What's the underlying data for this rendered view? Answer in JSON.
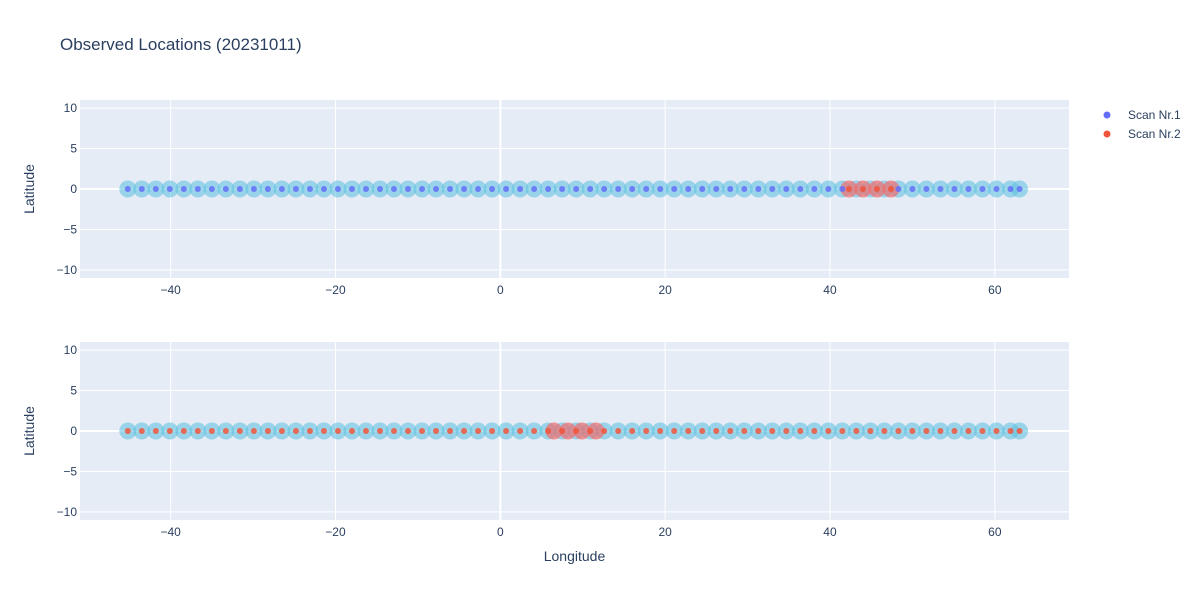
{
  "title": "Observed Locations (20231011)",
  "colors": {
    "plot_bg": "#e5ecf6",
    "grid": "#ffffff",
    "text": "#2a3f5f",
    "scan1": "#636efa",
    "scan2": "#ef553b",
    "marker_big": "#5bc0de",
    "marker_big_highlight": "#ef6b6b"
  },
  "legend": {
    "position": "top-right",
    "items": [
      {
        "name": "Scan Nr.1",
        "color": "#636efa"
      },
      {
        "name": "Scan Nr.2",
        "color": "#ef553b"
      }
    ]
  },
  "chart_data": [
    {
      "type": "scatter",
      "subplot": "top",
      "xlabel": "",
      "ylabel": "Latitude",
      "xlim": [
        -51,
        69
      ],
      "ylim": [
        -11,
        11
      ],
      "x_ticks": [
        -40,
        -20,
        0,
        20,
        40,
        60
      ],
      "y_ticks": [
        -10,
        -5,
        0,
        5,
        10
      ],
      "grid": true,
      "big_markers_x": [
        -45.2,
        -43.5,
        -41.8,
        -40.1,
        -38.4,
        -36.7,
        -35.0,
        -33.3,
        -31.6,
        -29.9,
        -28.2,
        -26.5,
        -24.8,
        -23.1,
        -21.4,
        -19.7,
        -18.0,
        -16.3,
        -14.6,
        -12.9,
        -11.2,
        -9.5,
        -7.8,
        -6.1,
        -4.4,
        -2.7,
        -1.0,
        0.7,
        2.4,
        4.1,
        5.8,
        7.5,
        9.2,
        10.9,
        12.6,
        14.3,
        16.0,
        17.7,
        19.4,
        21.1,
        22.8,
        24.5,
        26.2,
        27.9,
        29.6,
        31.3,
        33.0,
        34.7,
        36.4,
        38.1,
        39.8,
        41.5,
        43.2,
        44.9,
        46.6,
        48.3,
        50.0,
        51.7,
        53.4,
        55.1,
        56.8,
        58.5,
        60.2,
        61.9,
        63.0
      ],
      "highlight_x": [
        42.3,
        44.0,
        45.7,
        47.4
      ],
      "series": [
        {
          "name": "Scan Nr.1",
          "color": "#636efa",
          "x": [
            -45.2,
            -43.5,
            -41.8,
            -40.1,
            -38.4,
            -36.7,
            -35.0,
            -33.3,
            -31.6,
            -29.9,
            -28.2,
            -26.5,
            -24.8,
            -23.1,
            -21.4,
            -19.7,
            -18.0,
            -16.3,
            -14.6,
            -12.9,
            -11.2,
            -9.5,
            -7.8,
            -6.1,
            -4.4,
            -2.7,
            -1.0,
            0.7,
            2.4,
            4.1,
            5.8,
            7.5,
            9.2,
            10.9,
            12.6,
            14.3,
            16.0,
            17.7,
            19.4,
            21.1,
            22.8,
            24.5,
            26.2,
            27.9,
            29.6,
            31.3,
            33.0,
            34.7,
            36.4,
            38.1,
            39.8,
            41.5,
            48.3,
            50.0,
            51.7,
            53.4,
            55.1,
            56.8,
            58.5,
            60.2,
            61.9,
            63.0
          ],
          "y": 0.0
        },
        {
          "name": "Scan Nr.2",
          "color": "#ef553b",
          "x": [
            42.3,
            44.0,
            45.7,
            47.4
          ],
          "y": 0.0
        }
      ]
    },
    {
      "type": "scatter",
      "subplot": "bottom",
      "xlabel": "Longitude",
      "ylabel": "Latitude",
      "xlim": [
        -51,
        69
      ],
      "ylim": [
        -11,
        11
      ],
      "x_ticks": [
        -40,
        -20,
        0,
        20,
        40,
        60
      ],
      "y_ticks": [
        -10,
        -5,
        0,
        5,
        10
      ],
      "grid": true,
      "big_markers_x": [
        -45.2,
        -43.5,
        -41.8,
        -40.1,
        -38.4,
        -36.7,
        -35.0,
        -33.3,
        -31.6,
        -29.9,
        -28.2,
        -26.5,
        -24.8,
        -23.1,
        -21.4,
        -19.7,
        -18.0,
        -16.3,
        -14.6,
        -12.9,
        -11.2,
        -9.5,
        -7.8,
        -6.1,
        -4.4,
        -2.7,
        -1.0,
        0.7,
        2.4,
        4.1,
        5.8,
        7.5,
        9.2,
        10.9,
        12.6,
        14.3,
        16.0,
        17.7,
        19.4,
        21.1,
        22.8,
        24.5,
        26.2,
        27.9,
        29.6,
        31.3,
        33.0,
        34.7,
        36.4,
        38.1,
        39.8,
        41.5,
        43.2,
        44.9,
        46.6,
        48.3,
        50.0,
        51.7,
        53.4,
        55.1,
        56.8,
        58.5,
        60.2,
        61.9,
        63.0
      ],
      "highlight_x": [
        6.5,
        8.2,
        9.9,
        11.6
      ],
      "series": [
        {
          "name": "Scan Nr.2",
          "color": "#ef553b",
          "x": [
            -45.2,
            -43.5,
            -41.8,
            -40.1,
            -38.4,
            -36.7,
            -35.0,
            -33.3,
            -31.6,
            -29.9,
            -28.2,
            -26.5,
            -24.8,
            -23.1,
            -21.4,
            -19.7,
            -18.0,
            -16.3,
            -14.6,
            -12.9,
            -11.2,
            -9.5,
            -7.8,
            -6.1,
            -4.4,
            -2.7,
            -1.0,
            0.7,
            2.4,
            4.1,
            5.8,
            7.5,
            9.2,
            10.9,
            12.6,
            14.3,
            16.0,
            17.7,
            19.4,
            21.1,
            22.8,
            24.5,
            26.2,
            27.9,
            29.6,
            31.3,
            33.0,
            34.7,
            36.4,
            38.1,
            39.8,
            41.5,
            43.2,
            44.9,
            46.6,
            48.3,
            50.0,
            51.7,
            53.4,
            55.1,
            56.8,
            58.5,
            60.2,
            61.9,
            63.0
          ],
          "y": 0.0
        }
      ]
    }
  ]
}
